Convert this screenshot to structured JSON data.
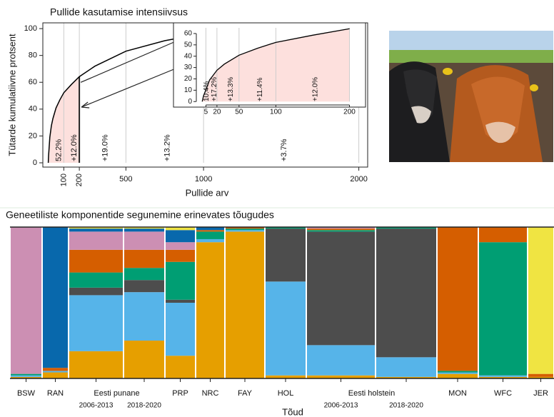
{
  "chart_data": [
    {
      "type": "line",
      "title": "Pullide kasutamise intensiivsus",
      "xlabel": "Pullide arv",
      "ylabel": "Tütarde kumulatiivne protsent",
      "x": [
        0,
        1,
        2,
        5,
        10,
        20,
        30,
        50,
        75,
        100,
        150,
        200,
        300,
        500,
        750,
        1000,
        1500,
        2000
      ],
      "values": [
        0,
        3,
        5.5,
        10.4,
        19,
        27.6,
        33,
        40.9,
        47,
        52.2,
        58.5,
        64.2,
        72,
        83.2,
        91,
        96.4,
        99,
        100
      ],
      "color": "#000000",
      "highlight_color": "#fde0dd",
      "xlim": [
        -35,
        2057
      ],
      "ylim": [
        -3.2,
        104.3
      ],
      "xticks": [
        100,
        200,
        500,
        1000,
        2000
      ],
      "yticks": [
        0,
        20,
        40,
        60,
        80,
        100
      ],
      "grid": true,
      "annotations": [
        "52.2%",
        "+12.0%",
        "+19.0%",
        "+13.2%",
        "+3.7%"
      ],
      "inset": {
        "xlim": [
          -8,
          215
        ],
        "ylim": [
          -3,
          65
        ],
        "xticks": [
          5,
          20,
          50,
          100,
          200
        ],
        "yticks": [
          0,
          10,
          20,
          30,
          40,
          50,
          60
        ],
        "annotations": [
          "10.4%",
          "+17.2%",
          "+13.3%",
          "+11.4%",
          "+12.0%"
        ]
      }
    },
    {
      "type": "stacked_bar",
      "title": "Geneetiliste komponentide segunemine erinevates tõugudes",
      "xlabel": "Tõud",
      "categories": [
        "BSW",
        "RAN",
        "2006-2013",
        "2018-2020",
        "PRP",
        "NRC",
        "FAY",
        "HOL",
        "2006-2013",
        "2018-2020",
        "MON",
        "WFC",
        "JER"
      ],
      "category_groups": [
        {
          "label": "Eesti punane",
          "categories": [
            2,
            3
          ]
        },
        {
          "label": "Eesti holstein",
          "categories": [
            8,
            9
          ]
        }
      ],
      "ylim": [
        0,
        100
      ],
      "series": [
        {
          "color": "#e69f00",
          "values": [
            1,
            4,
            18,
            25,
            15,
            90,
            97,
            2,
            2,
            1,
            3,
            1,
            1
          ]
        },
        {
          "color": "#56b4e9",
          "values": [
            1,
            1,
            37,
            32,
            35,
            2,
            1,
            62,
            20,
            13,
            1,
            1,
            0
          ]
        },
        {
          "color": "#4d4d4d",
          "values": [
            0,
            0,
            5,
            8,
            2,
            0,
            0,
            35,
            75,
            85,
            0,
            0,
            0
          ]
        },
        {
          "color": "#009e73",
          "values": [
            1,
            0,
            10,
            8,
            25,
            5,
            1,
            1,
            1,
            1,
            1,
            88,
            0
          ]
        },
        {
          "color": "#d55e00",
          "values": [
            0,
            2,
            15,
            12,
            8,
            1,
            1,
            0,
            1,
            0,
            95,
            10,
            2
          ]
        },
        {
          "color": "#cc8fb3",
          "values": [
            97,
            0,
            12,
            12,
            5,
            0,
            0,
            0,
            1,
            0,
            0,
            0,
            0
          ]
        },
        {
          "color": "#0868ac",
          "values": [
            0,
            93,
            2,
            2,
            8,
            2,
            0,
            0,
            0,
            0,
            0,
            0,
            0
          ]
        },
        {
          "color": "#f0e442",
          "values": [
            0,
            0,
            1,
            1,
            2,
            0,
            0,
            0,
            0,
            0,
            0,
            0,
            97
          ]
        }
      ]
    }
  ]
}
